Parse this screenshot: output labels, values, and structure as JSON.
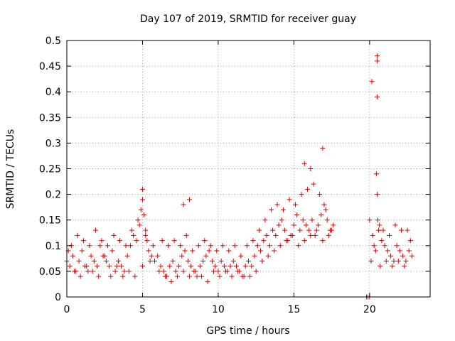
{
  "chart_data": {
    "type": "scatter",
    "title": "Day 107 of 2019, SRMTID for receiver guay",
    "xlabel": "GPS time / hours",
    "ylabel": "SRMTID / TECUs",
    "xlim": [
      0,
      24
    ],
    "ylim": [
      0,
      0.5
    ],
    "x_ticks": [
      0,
      5,
      10,
      15,
      20
    ],
    "y_ticks": [
      0,
      0.05,
      0.1,
      0.15,
      0.2,
      0.25,
      0.3,
      0.35,
      0.4,
      0.45,
      0.5
    ],
    "x_tick_labels": [
      "0",
      "5",
      "10",
      "15",
      "20"
    ],
    "y_tick_labels": [
      "0",
      "0.05",
      "0.1",
      "0.15",
      "0.2",
      "0.25",
      "0.3",
      "0.35",
      "0.4",
      "0.45",
      "0.5"
    ],
    "grid": true,
    "marker": "+",
    "color": "#e00000",
    "series": [
      {
        "name": "SRMTID",
        "x": [
          0.0,
          0.2,
          0.4,
          0.6,
          0.8,
          1.0,
          1.2,
          1.4,
          1.6,
          1.8,
          2.0,
          2.2,
          2.4,
          2.6,
          2.8,
          3.0,
          3.2,
          3.4,
          3.6,
          3.8,
          4.0,
          4.2,
          4.4,
          4.6,
          4.8,
          4.9,
          5.0,
          5.1,
          5.2,
          5.3,
          5.4,
          5.6,
          5.8,
          6.0,
          6.2,
          6.4,
          6.6,
          6.8,
          7.0,
          7.2,
          7.4,
          7.6,
          7.8,
          8.0,
          8.2,
          8.4,
          8.6,
          8.8,
          9.0,
          9.2,
          9.4,
          9.6,
          9.8,
          10.0,
          10.2,
          10.4,
          10.6,
          10.8,
          11.0,
          11.2,
          11.4,
          11.6,
          11.8,
          12.0,
          12.2,
          12.4,
          12.6,
          12.8,
          13.0,
          13.2,
          13.4,
          13.6,
          13.8,
          14.0,
          14.2,
          14.4,
          14.6,
          14.8,
          15.0,
          15.2,
          15.4,
          15.6,
          15.8,
          16.0,
          16.2,
          16.4,
          16.6,
          16.8,
          17.0,
          17.2,
          17.4,
          17.6,
          19.9,
          20.0,
          20.2,
          20.3,
          20.4,
          20.5,
          20.55,
          20.6,
          20.8,
          21.0,
          21.2,
          21.4,
          21.6,
          21.8,
          22.0,
          22.2,
          22.4,
          22.6,
          22.8,
          0.1,
          0.5,
          0.9,
          1.3,
          1.7,
          2.1,
          2.5,
          2.9,
          3.3,
          3.7,
          4.1,
          4.5,
          5.0,
          5.5,
          6.1,
          6.5,
          6.9,
          7.3,
          7.7,
          8.1,
          8.5,
          8.9,
          9.3,
          9.7,
          10.1,
          10.5,
          10.9,
          11.3,
          11.7,
          12.1,
          12.5,
          12.9,
          13.3,
          13.7,
          14.1,
          14.5,
          14.9,
          15.3,
          15.7,
          16.1,
          16.5,
          16.9,
          17.3,
          20.1,
          20.7,
          21.1,
          21.5,
          21.9,
          22.3,
          22.7,
          0.3,
          0.7,
          1.1,
          1.5,
          1.9,
          2.3,
          2.7,
          3.1,
          3.5,
          3.9,
          4.3,
          4.7,
          5.2,
          5.7,
          6.3,
          6.7,
          7.1,
          7.5,
          7.9,
          8.3,
          8.7,
          9.1,
          9.5,
          9.9,
          10.3,
          10.7,
          11.1,
          11.5,
          11.9,
          12.3,
          12.7,
          13.1,
          13.5,
          13.9,
          14.3,
          14.7,
          15.1,
          15.5,
          15.9,
          16.3,
          16.7,
          17.1,
          17.5,
          20.15,
          20.45,
          20.65,
          20.9,
          21.3,
          21.7,
          22.1,
          22.5,
          7.7,
          16.1,
          19.8,
          20.0,
          20.5,
          20.5,
          20.5,
          16.9,
          15.7,
          5.0,
          8.1
        ],
        "y": [
          0.07,
          0.06,
          0.08,
          0.05,
          0.07,
          0.09,
          0.06,
          0.05,
          0.08,
          0.07,
          0.06,
          0.1,
          0.08,
          0.07,
          0.06,
          0.09,
          0.05,
          0.07,
          0.06,
          0.05,
          0.08,
          0.1,
          0.12,
          0.11,
          0.14,
          0.17,
          0.19,
          0.16,
          0.13,
          0.11,
          0.09,
          0.08,
          0.07,
          0.08,
          0.06,
          0.05,
          0.04,
          0.06,
          0.07,
          0.05,
          0.06,
          0.08,
          0.09,
          0.07,
          0.06,
          0.05,
          0.04,
          0.06,
          0.07,
          0.08,
          0.09,
          0.07,
          0.06,
          0.05,
          0.07,
          0.06,
          0.05,
          0.06,
          0.07,
          0.06,
          0.05,
          0.04,
          0.06,
          0.07,
          0.06,
          0.08,
          0.1,
          0.09,
          0.11,
          0.12,
          0.1,
          0.13,
          0.12,
          0.14,
          0.15,
          0.13,
          0.11,
          0.12,
          0.14,
          0.16,
          0.13,
          0.15,
          0.14,
          0.13,
          0.15,
          0.12,
          0.14,
          0.16,
          0.18,
          0.15,
          0.13,
          0.14,
          0.0,
          0.15,
          0.12,
          0.1,
          0.09,
          0.2,
          0.15,
          0.13,
          0.11,
          0.1,
          0.09,
          0.08,
          0.07,
          0.1,
          0.09,
          0.08,
          0.07,
          0.09,
          0.08,
          0.09,
          0.05,
          0.04,
          0.06,
          0.05,
          0.04,
          0.08,
          0.04,
          0.06,
          0.04,
          0.05,
          0.04,
          0.06,
          0.07,
          0.05,
          0.04,
          0.03,
          0.04,
          0.05,
          0.04,
          0.05,
          0.04,
          0.03,
          0.05,
          0.04,
          0.05,
          0.04,
          0.05,
          0.04,
          0.04,
          0.05,
          0.07,
          0.08,
          0.09,
          0.1,
          0.11,
          0.12,
          0.1,
          0.11,
          0.12,
          0.13,
          0.11,
          0.12,
          0.07,
          0.06,
          0.07,
          0.06,
          0.07,
          0.06,
          0.11,
          0.1,
          0.12,
          0.11,
          0.1,
          0.13,
          0.11,
          0.1,
          0.12,
          0.11,
          0.1,
          0.13,
          0.15,
          0.12,
          0.1,
          0.11,
          0.1,
          0.11,
          0.1,
          0.12,
          0.09,
          0.1,
          0.11,
          0.1,
          0.09,
          0.1,
          0.09,
          0.1,
          0.08,
          0.1,
          0.11,
          0.13,
          0.15,
          0.17,
          0.18,
          0.17,
          0.19,
          0.18,
          0.2,
          0.21,
          0.22,
          0.2,
          0.17,
          0.13,
          0.42,
          0.24,
          0.14,
          0.13,
          0.12,
          0.14,
          0.13,
          0.13,
          0.18,
          0.25,
          0.0,
          0.0,
          0.47,
          0.46,
          0.39,
          0.29,
          0.26,
          0.21,
          0.19
        ]
      }
    ]
  }
}
